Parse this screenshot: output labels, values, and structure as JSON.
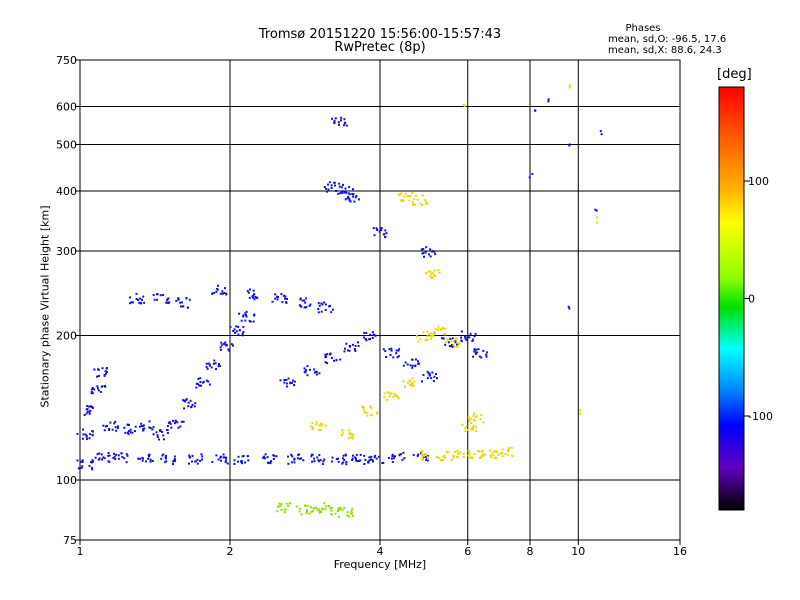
{
  "chart_data": {
    "type": "scatter",
    "title": "Tromsø 20151220 15:56:00-15:57:43",
    "subtitle": "RwPretec (8p)",
    "xlabel": "Frequency [MHz]",
    "ylabel": "Stationary phase Virtual Height [km]",
    "xscale": "log",
    "yscale": "log",
    "xlim": [
      1,
      16
    ],
    "ylim": [
      75,
      750
    ],
    "xticks": [
      1,
      2,
      4,
      6,
      8,
      10,
      16
    ],
    "xtick_labels": [
      "1",
      "2",
      "4",
      "6",
      "8",
      "10",
      "16"
    ],
    "yticks": [
      75,
      100,
      200,
      300,
      400,
      500,
      600,
      750
    ],
    "ytick_labels": [
      "75",
      "100",
      "200",
      "300",
      "400",
      "500",
      "600",
      "750"
    ],
    "grid": true,
    "legend": {
      "header": "Phases",
      "line_o": "mean, sd,O: -96.5, 17.6",
      "line_x": "mean, sd,X:  88.6, 24.3",
      "placement": "top-right"
    },
    "colorbar": {
      "unit": "[deg]",
      "range": [
        -180,
        180
      ],
      "ticks": [
        100,
        0,
        -100
      ],
      "tick_labels": [
        "100",
        "0",
        "-100"
      ],
      "colormap": "rainbow (black-purple-blue-cyan-green-yellow-red)"
    },
    "series": [
      {
        "group": "ground-band",
        "phase": -100,
        "points": [
          [
            1.02,
            108
          ],
          [
            1.1,
            112
          ],
          [
            1.2,
            112
          ],
          [
            1.35,
            111
          ],
          [
            1.5,
            111
          ],
          [
            1.7,
            111
          ],
          [
            1.9,
            111
          ],
          [
            2.1,
            111
          ],
          [
            2.4,
            111
          ],
          [
            2.7,
            111
          ],
          [
            3.0,
            111
          ],
          [
            3.3,
            111
          ],
          [
            3.6,
            111
          ],
          [
            3.9,
            111
          ],
          [
            4.3,
            112
          ],
          [
            4.8,
            112
          ]
        ]
      },
      {
        "group": "ground-band-yellow",
        "phase": 100,
        "points": [
          [
            5.0,
            113
          ],
          [
            5.4,
            113
          ],
          [
            5.8,
            114
          ],
          [
            6.2,
            114
          ],
          [
            6.6,
            114
          ],
          [
            7.1,
            115
          ]
        ]
      },
      {
        "group": "low-left-cluster",
        "phase": -100,
        "points": [
          [
            1.02,
            125
          ],
          [
            1.05,
            140
          ],
          [
            1.08,
            155
          ],
          [
            1.1,
            168
          ],
          [
            1.15,
            130
          ],
          [
            1.25,
            128
          ],
          [
            1.35,
            130
          ],
          [
            1.45,
            125
          ],
          [
            1.55,
            132
          ],
          [
            1.65,
            145
          ],
          [
            1.75,
            160
          ],
          [
            1.85,
            175
          ],
          [
            1.95,
            190
          ],
          [
            2.05,
            205
          ],
          [
            2.15,
            220
          ],
          [
            1.3,
            240
          ],
          [
            1.45,
            240
          ],
          [
            1.6,
            235
          ],
          [
            1.9,
            250
          ],
          [
            2.2,
            245
          ],
          [
            2.5,
            240
          ],
          [
            2.8,
            235
          ],
          [
            3.1,
            230
          ]
        ]
      },
      {
        "group": "mid-cluster",
        "phase": -100,
        "points": [
          [
            2.6,
            160
          ],
          [
            2.9,
            170
          ],
          [
            3.2,
            180
          ],
          [
            3.5,
            190
          ],
          [
            3.8,
            200
          ],
          [
            4.2,
            185
          ],
          [
            4.6,
            175
          ],
          [
            5.0,
            165
          ],
          [
            5.5,
            195
          ],
          [
            6.0,
            200
          ],
          [
            6.3,
            185
          ]
        ]
      },
      {
        "group": "mid-cluster-warm",
        "phase": 100,
        "points": [
          [
            3.0,
            130
          ],
          [
            3.4,
            125
          ],
          [
            3.8,
            140
          ],
          [
            4.2,
            150
          ],
          [
            4.6,
            160
          ],
          [
            4.9,
            200
          ],
          [
            5.2,
            205
          ],
          [
            5.6,
            195
          ],
          [
            6.0,
            130
          ],
          [
            6.2,
            135
          ]
        ]
      },
      {
        "group": "F-region",
        "phase": -100,
        "points": [
          [
            3.2,
            410
          ],
          [
            3.4,
            405
          ],
          [
            3.5,
            390
          ],
          [
            3.3,
            560
          ],
          [
            4.0,
            330
          ],
          [
            5.0,
            300
          ]
        ]
      },
      {
        "group": "F-region-warm",
        "phase": 100,
        "points": [
          [
            4.5,
            390
          ],
          [
            4.8,
            385
          ],
          [
            5.1,
            270
          ]
        ]
      },
      {
        "group": "E-sporadic",
        "phase": 60,
        "points": [
          [
            2.55,
            88
          ],
          [
            2.8,
            87
          ],
          [
            3.0,
            88
          ],
          [
            3.2,
            87
          ],
          [
            3.4,
            86
          ]
        ]
      },
      {
        "group": "sparse-high",
        "phase": -100,
        "points": [
          [
            8.2,
            590
          ],
          [
            8.7,
            620
          ],
          [
            9.5,
            500
          ],
          [
            11.1,
            530
          ],
          [
            8.0,
            430
          ],
          [
            9.5,
            230
          ],
          [
            10.8,
            370
          ]
        ]
      },
      {
        "group": "sparse-high-warm",
        "phase": 140,
        "points": [
          [
            5.9,
            605
          ],
          [
            9.6,
            660
          ],
          [
            10.0,
            140
          ],
          [
            10.8,
            350
          ]
        ]
      }
    ]
  }
}
